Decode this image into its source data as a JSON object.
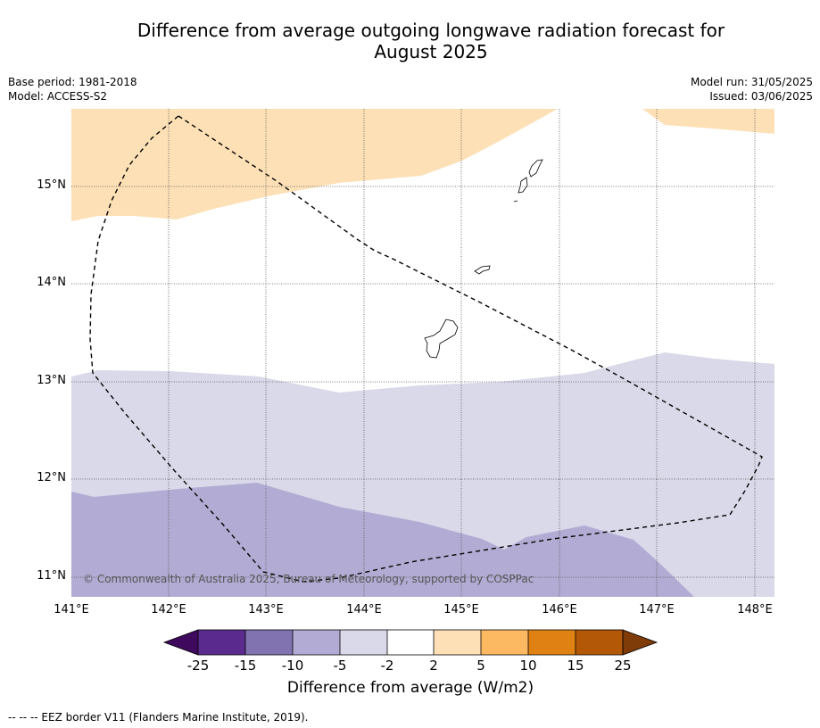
{
  "title_line1": "Difference from average outgoing longwave radiation forecast for",
  "title_line2": "August 2025",
  "meta_left": {
    "base_period": "Base period: 1981-2018",
    "model": "Model: ACCESS-S2"
  },
  "meta_right": {
    "model_run": "Model run: 31/05/2025",
    "issued": "Issued: 03/06/2025"
  },
  "lat_labels": [
    "15°N",
    "14°N",
    "13°N",
    "12°N",
    "11°N"
  ],
  "lon_labels": [
    "141°E",
    "142°E",
    "143°E",
    "144°E",
    "145°E",
    "146°E",
    "147°E",
    "148°E"
  ],
  "copyright": "© Commonwealth of Australia 2025, Bureau of Meteorology, supported by COSPPac",
  "colorbar": {
    "ticks": [
      "-25",
      "-15",
      "-10",
      "-5",
      "-2",
      "2",
      "5",
      "10",
      "15",
      "25"
    ],
    "colors": [
      "#3f0a5e",
      "#5b2a8e",
      "#8073b0",
      "#b2abd3",
      "#d9d9ea",
      "#ffffff",
      "#fde0b6",
      "#fdb862",
      "#e08213",
      "#b35806",
      "#7f3b08"
    ],
    "title": "Difference from average (W/m2)"
  },
  "footnote": "--  --  -- EEZ border V11 (Flanders Marine Institute, 2019)."
}
